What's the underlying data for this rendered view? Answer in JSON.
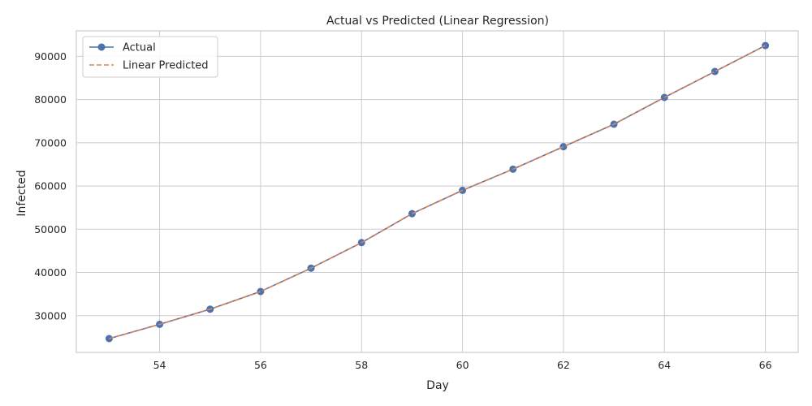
{
  "chart_data": {
    "type": "line",
    "title": "Actual vs Predicted (Linear Regression)",
    "xlabel": "Day",
    "ylabel": "Infected",
    "x": [
      53,
      54,
      55,
      56,
      57,
      58,
      59,
      60,
      61,
      62,
      63,
      64,
      65,
      66
    ],
    "xlim": [
      52.35,
      66.65
    ],
    "ylim": [
      21500,
      95900
    ],
    "xticks": [
      54,
      56,
      58,
      60,
      62,
      64,
      66
    ],
    "yticks": [
      30000,
      40000,
      50000,
      60000,
      70000,
      80000,
      90000
    ],
    "grid": true,
    "legend_position": "top-left",
    "series": [
      {
        "name": "Actual",
        "style": "solid-with-markers",
        "color": "#4c72b0",
        "values": [
          24700,
          28000,
          31500,
          35600,
          41000,
          46900,
          53600,
          59000,
          63900,
          69100,
          74300,
          80500,
          86500,
          92500
        ]
      },
      {
        "name": "Linear Predicted",
        "style": "dashed",
        "color": "#dd8452",
        "values": [
          24700,
          28000,
          31500,
          35600,
          41000,
          46900,
          53600,
          59000,
          63900,
          69100,
          74300,
          80500,
          86500,
          92500
        ]
      }
    ]
  }
}
